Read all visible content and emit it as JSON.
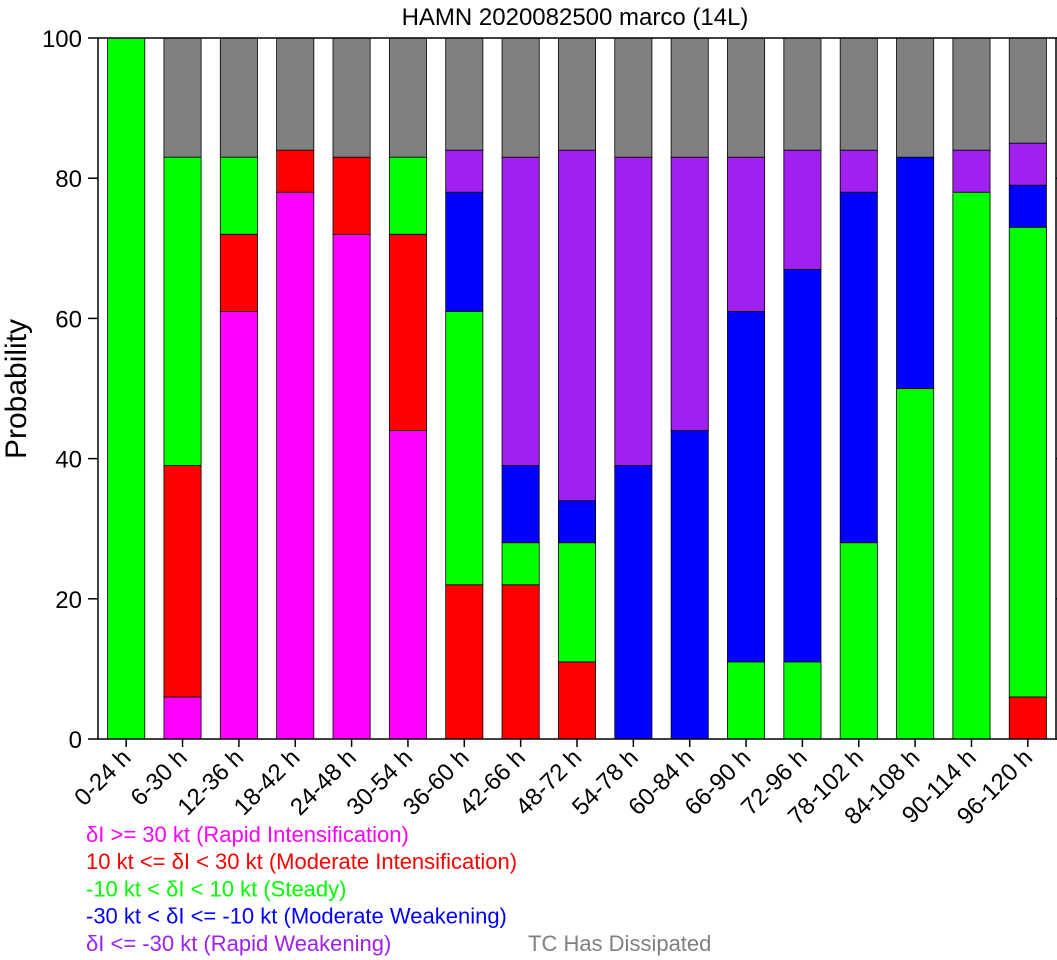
{
  "chart_data": {
    "type": "bar",
    "stacked": true,
    "title": "HAMN 2020082500 marco (14L)",
    "ylabel": "Probability",
    "xlabel": "",
    "ylim": [
      0,
      100
    ],
    "yticks": [
      0,
      20,
      40,
      60,
      80,
      100
    ],
    "grid": false,
    "categories": [
      "0-24 h",
      "6-30 h",
      "12-36 h",
      "18-42 h",
      "24-48 h",
      "30-54 h",
      "36-60 h",
      "42-66 h",
      "48-72 h",
      "54-78 h",
      "60-84 h",
      "66-90 h",
      "72-96 h",
      "78-102 h",
      "84-108 h",
      "90-114 h",
      "96-120 h"
    ],
    "series": [
      {
        "key": "ri",
        "color": "#ff00ff",
        "values": [
          0,
          6,
          61,
          78,
          72,
          44,
          0,
          0,
          0,
          0,
          0,
          0,
          0,
          0,
          0,
          0,
          0
        ]
      },
      {
        "key": "mi",
        "color": "#ff0000",
        "values": [
          0,
          33,
          11,
          6,
          11,
          28,
          22,
          22,
          11,
          0,
          0,
          0,
          0,
          0,
          0,
          0,
          6
        ]
      },
      {
        "key": "steady",
        "color": "#00ff00",
        "values": [
          100,
          44,
          11,
          0,
          0,
          11,
          39,
          6,
          17,
          0,
          0,
          11,
          11,
          28,
          50,
          78,
          67
        ]
      },
      {
        "key": "mw",
        "color": "#0000ff",
        "values": [
          0,
          0,
          0,
          0,
          0,
          0,
          17,
          11,
          6,
          39,
          44,
          50,
          56,
          50,
          33,
          0,
          6
        ]
      },
      {
        "key": "rw",
        "color": "#a020f0",
        "values": [
          0,
          0,
          0,
          0,
          0,
          0,
          6,
          44,
          50,
          44,
          39,
          22,
          17,
          6,
          0,
          6,
          6
        ]
      },
      {
        "key": "dissipated",
        "color": "#808080",
        "values": [
          0,
          17,
          17,
          16,
          17,
          17,
          16,
          17,
          16,
          17,
          17,
          17,
          16,
          16,
          17,
          16,
          15
        ]
      }
    ],
    "legend": [
      {
        "text": "δI >= 30 kt (Rapid Intensification)",
        "color": "#ff00ff"
      },
      {
        "text": "10 kt <= δI < 30 kt (Moderate Intensification)",
        "color": "#ff0000"
      },
      {
        "text": "-10 kt < δI < 10 kt (Steady)",
        "color": "#00ff00"
      },
      {
        "text": "-30 kt < δI <= -10 kt (Moderate Weakening)",
        "color": "#0000ff"
      },
      {
        "text": "δI <= -30 kt (Rapid Weakening)",
        "color": "#a020f0"
      },
      {
        "text": "TC Has Dissipated",
        "color": "#808080"
      }
    ],
    "legend_placement": "bottom-left"
  }
}
